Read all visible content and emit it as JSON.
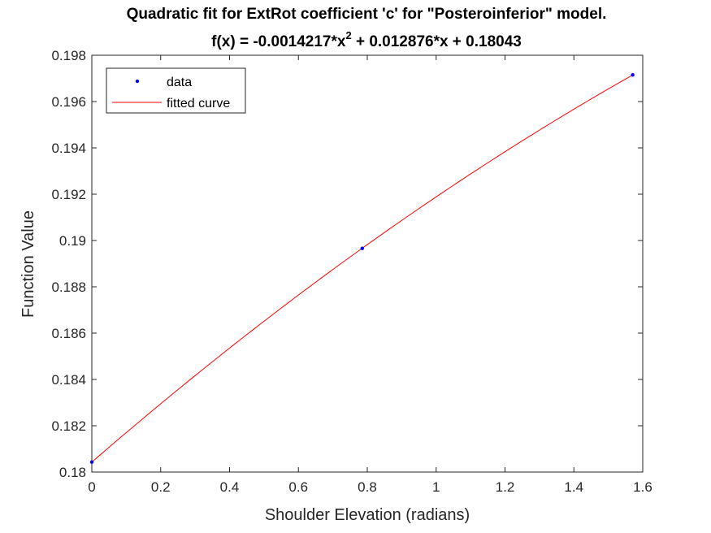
{
  "chart_data": {
    "type": "line",
    "title": "Quadratic fit for ExtRot coefficient 'c' for \"Posteroinferior\" model.",
    "subtitle_parts": {
      "prefix": "f(x) = -0.0014217*x",
      "exponent": "2",
      "suffix": " + 0.012876*x + 0.18043"
    },
    "xlabel": "Shoulder Elevation (radians)",
    "ylabel": "Function Value",
    "xlim": [
      0,
      1.6
    ],
    "ylim": [
      0.18,
      0.198
    ],
    "xticks": [
      "0",
      "0.2",
      "0.4",
      "0.6",
      "0.8",
      "1",
      "1.2",
      "1.4",
      "1.6"
    ],
    "yticks": [
      "0.18",
      "0.182",
      "0.184",
      "0.186",
      "0.188",
      "0.19",
      "0.192",
      "0.194",
      "0.196",
      "0.198"
    ],
    "legend_position": "top-left",
    "grid": false,
    "series": [
      {
        "name": "data",
        "kind": "points",
        "color": "#0000ff",
        "x": [
          0,
          0.7854,
          1.5708
        ],
        "y": [
          0.18043,
          0.18966,
          0.19715
        ]
      },
      {
        "name": "fitted curve",
        "kind": "line",
        "color": "#ff0000",
        "coefficients": {
          "a": -0.0014217,
          "b": 0.012876,
          "c": 0.18043
        },
        "x_range": [
          0,
          1.5708
        ]
      }
    ]
  }
}
